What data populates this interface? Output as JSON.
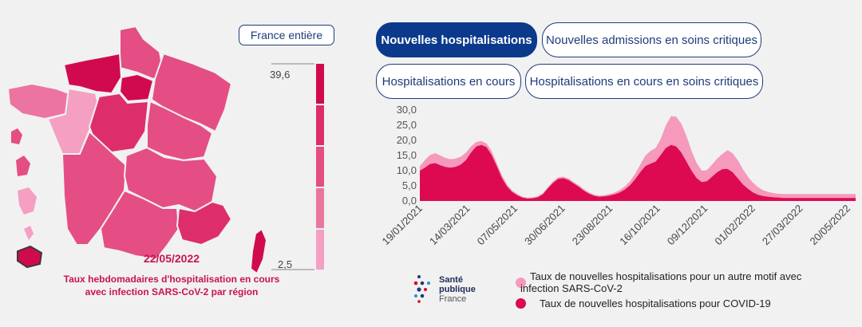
{
  "map": {
    "button_label": "France entière",
    "legend_max": "39,6",
    "legend_min": "2,5",
    "legend_colors": [
      "#d10a50",
      "#dd2e6b",
      "#e44e84",
      "#ec74a0",
      "#f59fc2"
    ],
    "date": "22/05/2022",
    "caption_line1": "Taux hebdomadaires d'hospitalisation en cours",
    "caption_line2": "avec infection SARS-CoV-2 par région"
  },
  "tabs": [
    {
      "label": "Nouvelles hospitalisations",
      "active": true
    },
    {
      "label": "Nouvelles admissions en soins critiques",
      "active": false
    },
    {
      "label": "Hospitalisations en cours",
      "active": false
    },
    {
      "label": "Hospitalisations en cours en soins critiques",
      "active": false
    }
  ],
  "logo": {
    "line1": "Santé",
    "line2": "publique",
    "line3": "France"
  },
  "chart_data": {
    "type": "area",
    "title": "",
    "xlabel": "",
    "ylabel": "",
    "ylim": [
      0,
      30
    ],
    "yticks": [
      "30,0",
      "25,0",
      "20,0",
      "15,0",
      "10,0",
      "5,0",
      "0,0"
    ],
    "ytick_values": [
      30,
      25,
      20,
      15,
      10,
      5,
      0
    ],
    "xtick_labels": [
      "19/01/2021",
      "14/03/2021",
      "07/05/2021",
      "30/06/2021",
      "23/08/2021",
      "16/10/2021",
      "09/12/2021",
      "01/02/2022",
      "27/03/2022",
      "20/05/2022"
    ],
    "x": [
      0,
      2,
      4,
      6,
      8,
      10,
      12,
      14,
      16,
      18,
      20,
      22,
      24,
      26,
      28,
      30,
      32,
      34,
      36,
      38,
      40,
      42,
      44,
      46,
      48,
      50,
      52,
      54,
      56,
      58,
      60,
      62,
      64,
      66,
      68,
      70,
      72,
      74,
      76,
      78,
      80,
      82,
      84,
      86,
      88,
      90,
      92,
      94,
      96,
      98,
      100,
      102,
      104,
      106,
      108,
      110,
      112,
      114,
      116,
      118,
      120,
      122,
      124,
      126,
      128,
      130,
      132,
      134,
      136,
      138,
      140,
      142,
      144,
      146,
      148,
      150,
      152,
      154,
      156,
      158,
      160,
      162,
      164,
      166,
      168,
      170
    ],
    "series": [
      {
        "name": "Taux de nouvelles hospitalisations pour un autre motif avec infection SARS-CoV-2",
        "color": "#f599bd",
        "values": [
          11.5,
          13.5,
          15.2,
          15.8,
          15.0,
          14.2,
          13.8,
          14.0,
          14.6,
          16.0,
          18.0,
          19.5,
          19.8,
          19.0,
          16.5,
          12.5,
          8.5,
          5.5,
          3.5,
          2.3,
          1.4,
          1.1,
          1.2,
          1.5,
          2.6,
          4.6,
          6.5,
          7.8,
          8.0,
          7.4,
          6.3,
          5.2,
          3.9,
          2.8,
          2.1,
          1.8,
          1.9,
          2.3,
          2.8,
          3.6,
          4.8,
          6.5,
          9.0,
          12.0,
          15.0,
          16.5,
          17.5,
          20.5,
          25.0,
          28.0,
          27.8,
          25.5,
          21.5,
          16.5,
          12.5,
          10.0,
          10.2,
          12.0,
          14.0,
          15.5,
          16.8,
          15.8,
          13.5,
          10.5,
          8.0,
          6.0,
          4.5,
          3.5,
          3.0,
          2.6,
          2.4,
          2.3,
          2.3,
          2.3,
          2.3,
          2.3,
          2.3,
          2.3,
          2.3,
          2.3,
          2.3,
          2.3,
          2.3,
          2.3,
          2.3,
          2.3
        ]
      },
      {
        "name": "Taux de nouvelles hospitalisations pour COVID-19",
        "color": "#dd0a52",
        "values": [
          10.0,
          11.0,
          12.2,
          12.5,
          11.8,
          11.2,
          11.0,
          11.3,
          12.0,
          13.5,
          16.0,
          18.0,
          18.5,
          17.8,
          15.2,
          11.5,
          7.6,
          4.8,
          3.0,
          1.9,
          1.1,
          0.8,
          0.9,
          1.2,
          2.2,
          4.2,
          6.0,
          7.3,
          7.5,
          6.9,
          5.8,
          4.7,
          3.4,
          2.4,
          1.7,
          1.4,
          1.5,
          1.8,
          2.2,
          2.8,
          3.8,
          5.2,
          7.2,
          9.5,
          11.5,
          12.3,
          13.0,
          15.2,
          17.5,
          18.5,
          18.0,
          16.0,
          13.0,
          10.0,
          7.5,
          6.2,
          6.5,
          8.0,
          9.5,
          10.5,
          10.6,
          9.5,
          7.5,
          5.5,
          4.0,
          2.8,
          2.0,
          1.6,
          1.4,
          1.2,
          1.1,
          1.0,
          1.0,
          1.0,
          1.0,
          1.0,
          1.0,
          1.0,
          1.0,
          1.0,
          1.0,
          1.0,
          1.0,
          1.0,
          1.0,
          1.0
        ]
      }
    ]
  }
}
